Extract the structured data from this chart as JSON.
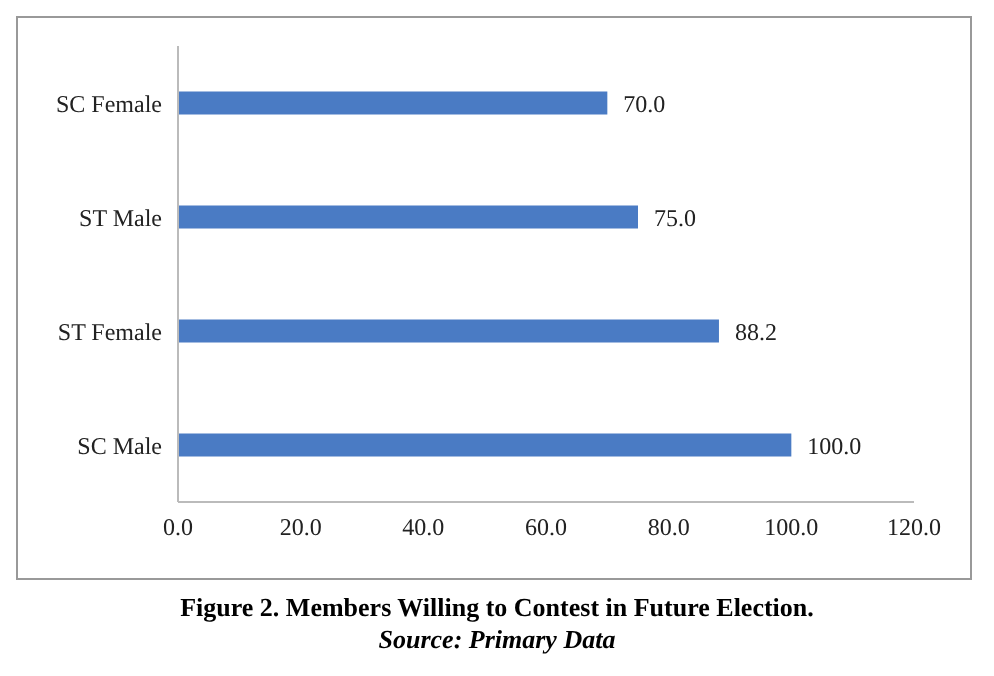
{
  "chart_data": {
    "type": "bar",
    "orientation": "horizontal",
    "title": "Figure 2. Members Willing to Contest in Future Election.",
    "annotations": [
      "Source: Primary Data"
    ],
    "categories": [
      "SC Female",
      "ST Male",
      "ST Female",
      "SC Male"
    ],
    "values": [
      70,
      75,
      88.2,
      100
    ],
    "value_labels": [
      "70.0",
      "75.0",
      "88.2",
      "100.0"
    ],
    "color": "#4a7bc4",
    "xlim": [
      0,
      120
    ],
    "xticks": [
      {
        "value": 0,
        "label": "0.0"
      },
      {
        "value": 20,
        "label": "20.0"
      },
      {
        "value": 40,
        "label": "40.0"
      },
      {
        "value": 60,
        "label": "60.0"
      },
      {
        "value": 80,
        "label": "80.0"
      },
      {
        "value": 100,
        "label": "100.0"
      },
      {
        "value": 120,
        "label": "120.0"
      }
    ]
  }
}
